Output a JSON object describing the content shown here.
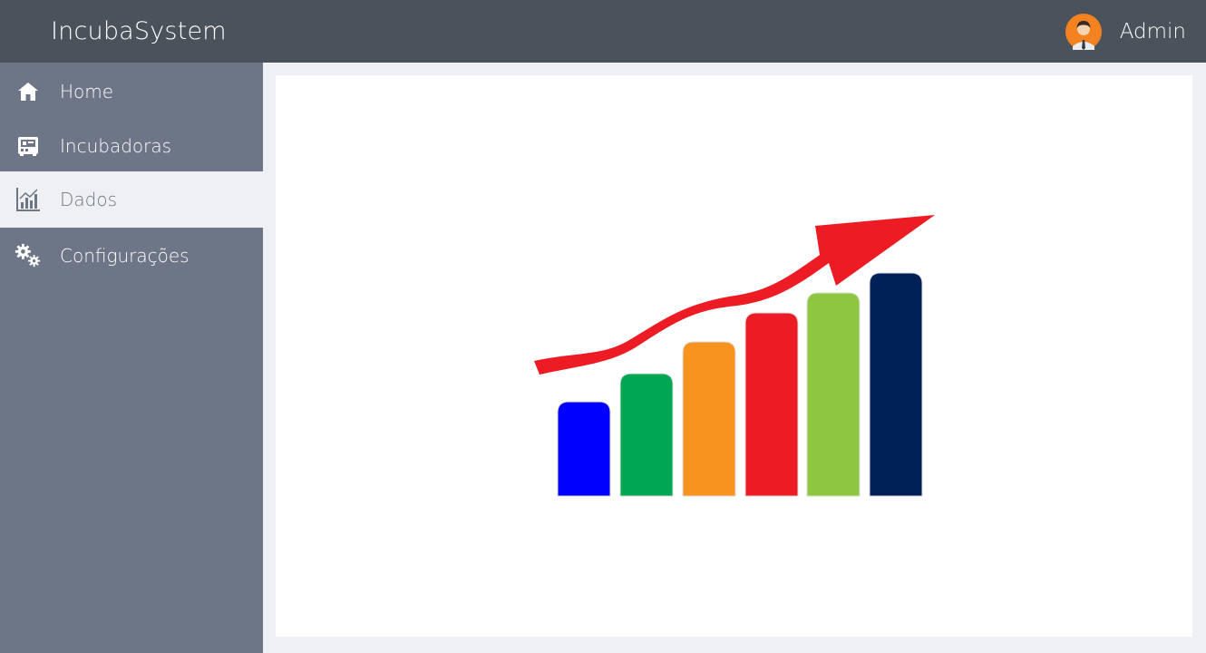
{
  "app": {
    "title": "IncubaSystem"
  },
  "user": {
    "name": "Admin",
    "avatar_icon": "user-avatar-icon"
  },
  "sidebar": {
    "items": [
      {
        "label": "Home",
        "icon": "home-icon",
        "active": false
      },
      {
        "label": "Incubadoras",
        "icon": "incubator-icon",
        "active": false
      },
      {
        "label": "Dados",
        "icon": "bar-chart-icon",
        "active": true
      },
      {
        "label": "Configurações",
        "icon": "gears-icon",
        "active": false
      }
    ]
  },
  "main": {
    "illustration": {
      "icon": "growth-chart-illustration",
      "bar_colors": [
        "#0000ff",
        "#00a651",
        "#f7931e",
        "#ed1c24",
        "#8dc63f",
        "#002157"
      ],
      "arrow_color": "#ed1c24"
    }
  },
  "colors": {
    "topbar": "#4a525c",
    "sidebar": "#6c7686",
    "active_item_bg": "#eef0f4"
  }
}
